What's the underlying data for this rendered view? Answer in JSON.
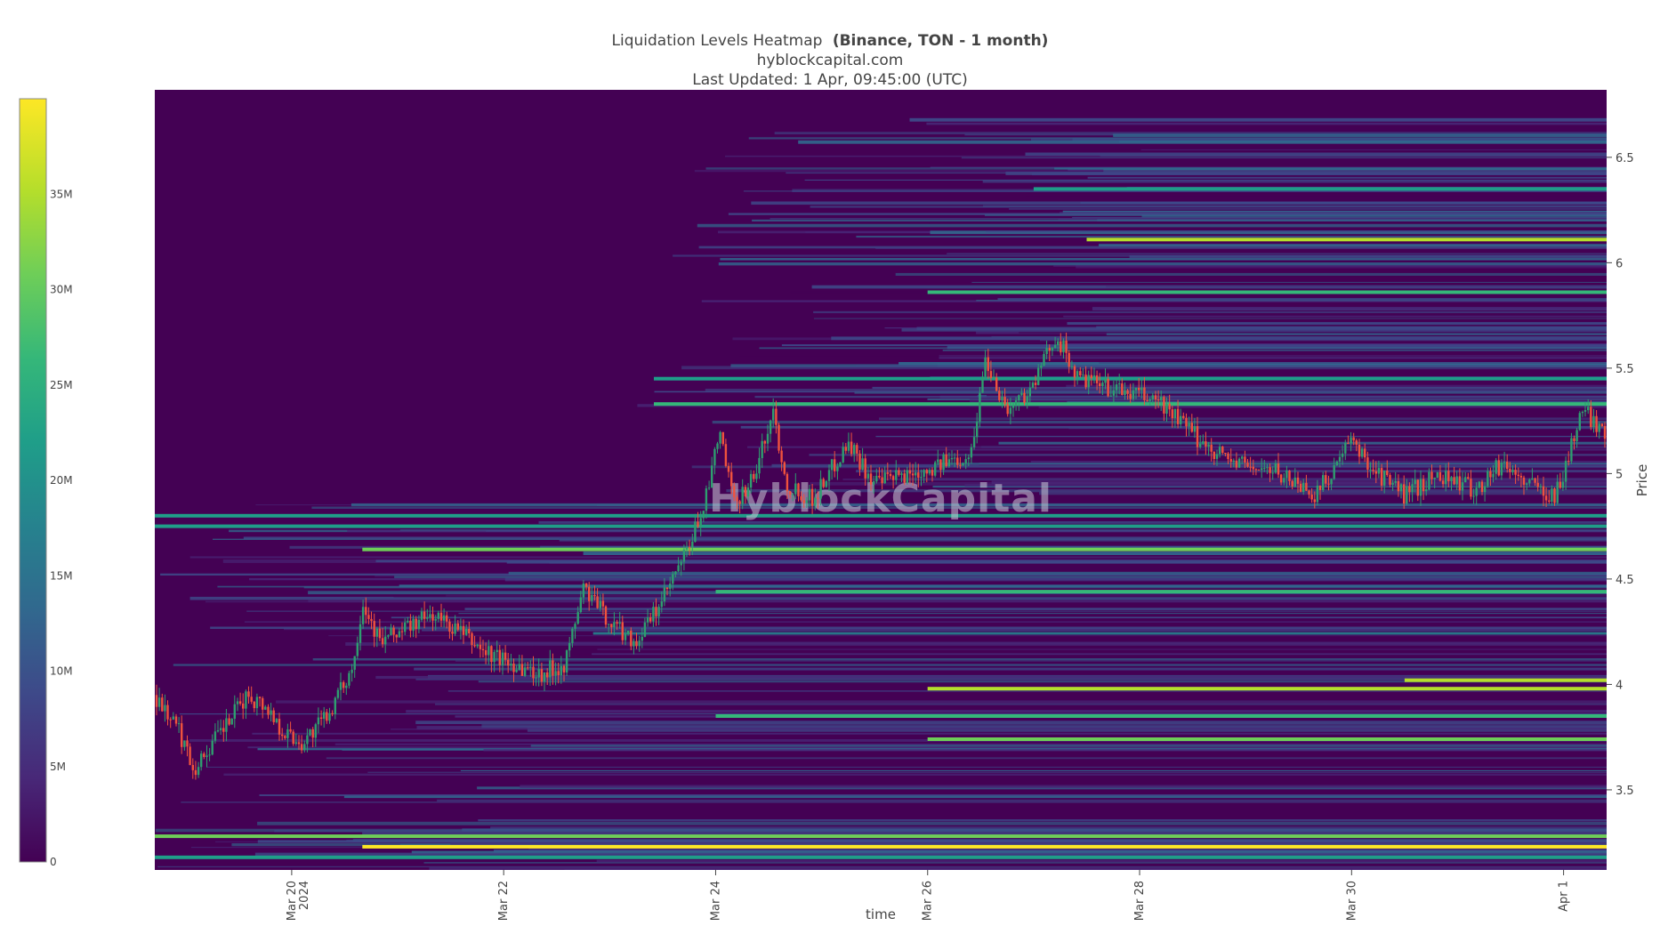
{
  "title": {
    "main": "Liquidation Levels Heatmap",
    "bold": "(Binance, TON - 1 month)",
    "source": "hyblockcapital.com",
    "updated": "Last Updated: 1 Apr, 09:45:00 (UTC)"
  },
  "watermark": "HyblockCapital",
  "colors": {
    "scale": [
      "#440154",
      "#482878",
      "#3e4989",
      "#31688e",
      "#26828e",
      "#1f9e89",
      "#35b779",
      "#6ece58",
      "#b5de2b",
      "#fde725"
    ],
    "up": "#2e9e6f",
    "down": "#f0523d"
  },
  "chart_data": {
    "type": "heatmap",
    "xlabel": "time",
    "ylabel": "Price",
    "x_range": [
      "2024-03-18 17:00",
      "2024-04-01 09:45"
    ],
    "ylim": [
      3.12,
      6.82
    ],
    "x_ticks": [
      {
        "value": "2024-03-20",
        "label": "Mar 20",
        "sub": "2024"
      },
      {
        "value": "2024-03-22",
        "label": "Mar 22"
      },
      {
        "value": "2024-03-24",
        "label": "Mar 24"
      },
      {
        "value": "2024-03-26",
        "label": "Mar 26"
      },
      {
        "value": "2024-03-28",
        "label": "Mar 28"
      },
      {
        "value": "2024-03-30",
        "label": "Mar 30"
      },
      {
        "value": "2024-04-01",
        "label": "Apr 1"
      }
    ],
    "y_ticks": [
      {
        "value": 3.5,
        "label": "3.5"
      },
      {
        "value": 4,
        "label": "4"
      },
      {
        "value": 4.5,
        "label": "4.5"
      },
      {
        "value": 5,
        "label": "5"
      },
      {
        "value": 5.5,
        "label": "5.5"
      },
      {
        "value": 6,
        "label": "6"
      },
      {
        "value": 6.5,
        "label": "6.5"
      }
    ],
    "colorbar": {
      "range": [
        0,
        40000000
      ],
      "ticks": [
        {
          "value": 0,
          "label": "0"
        },
        {
          "value": 5000000,
          "label": "5M"
        },
        {
          "value": 10000000,
          "label": "10M"
        },
        {
          "value": 15000000,
          "label": "15M"
        },
        {
          "value": 20000000,
          "label": "20M"
        },
        {
          "value": 25000000,
          "label": "25M"
        },
        {
          "value": 30000000,
          "label": "30M"
        },
        {
          "value": 35000000,
          "label": "35M"
        }
      ]
    },
    "liquidation_levels": [
      {
        "price": 3.23,
        "from": "2024-03-20 16:00",
        "value": 38000000
      },
      {
        "price": 3.28,
        "from": "2024-03-18 17:00",
        "value": 30000000
      },
      {
        "price": 3.18,
        "from": "2024-03-18 17:00",
        "value": 24000000
      },
      {
        "price": 3.74,
        "from": "2024-03-26 00:00",
        "value": 32000000
      },
      {
        "price": 3.85,
        "from": "2024-03-24 00:00",
        "value": 28000000
      },
      {
        "price": 3.98,
        "from": "2024-03-26 00:00",
        "value": 36000000
      },
      {
        "price": 4.02,
        "from": "2024-03-30 12:00",
        "value": 37000000
      },
      {
        "price": 4.44,
        "from": "2024-03-24 00:00",
        "value": 26000000
      },
      {
        "price": 4.64,
        "from": "2024-03-20 16:00",
        "value": 33000000
      },
      {
        "price": 4.75,
        "from": "2024-03-18 17:00",
        "value": 24000000
      },
      {
        "price": 4.8,
        "from": "2024-03-18 17:00",
        "value": 20000000
      },
      {
        "price": 5.33,
        "from": "2024-03-23 10:00",
        "value": 26000000
      },
      {
        "price": 5.45,
        "from": "2024-03-23 10:00",
        "value": 24000000
      },
      {
        "price": 5.86,
        "from": "2024-03-26 00:00",
        "value": 28000000
      },
      {
        "price": 6.11,
        "from": "2024-03-27 12:00",
        "value": 37000000
      },
      {
        "price": 6.35,
        "from": "2024-03-27 00:00",
        "value": 22000000
      }
    ],
    "price_series": {
      "name": "TON",
      "points": [
        [
          "2024-03-18 17:00",
          3.95
        ],
        [
          "2024-03-18 22:00",
          3.8
        ],
        [
          "2024-03-19 02:00",
          3.6
        ],
        [
          "2024-03-19 06:00",
          3.72
        ],
        [
          "2024-03-19 10:00",
          3.83
        ],
        [
          "2024-03-19 14:00",
          3.95
        ],
        [
          "2024-03-19 18:00",
          3.9
        ],
        [
          "2024-03-19 22:00",
          3.78
        ],
        [
          "2024-03-20 02:00",
          3.72
        ],
        [
          "2024-03-20 06:00",
          3.8
        ],
        [
          "2024-03-20 10:00",
          3.92
        ],
        [
          "2024-03-20 14:00",
          4.1
        ],
        [
          "2024-03-20 16:00",
          4.4
        ],
        [
          "2024-03-20 20:00",
          4.2
        ],
        [
          "2024-03-21 02:00",
          4.27
        ],
        [
          "2024-03-21 08:00",
          4.33
        ],
        [
          "2024-03-21 14:00",
          4.25
        ],
        [
          "2024-03-21 20:00",
          4.15
        ],
        [
          "2024-03-22 02:00",
          4.1
        ],
        [
          "2024-03-22 08:00",
          4.05
        ],
        [
          "2024-03-22 14:00",
          4.1
        ],
        [
          "2024-03-22 18:00",
          4.46
        ],
        [
          "2024-03-23 00:00",
          4.3
        ],
        [
          "2024-03-23 06:00",
          4.2
        ],
        [
          "2024-03-23 12:00",
          4.4
        ],
        [
          "2024-03-23 18:00",
          4.65
        ],
        [
          "2024-03-23 22:00",
          4.9
        ],
        [
          "2024-03-24 01:00",
          5.2
        ],
        [
          "2024-03-24 04:00",
          4.85
        ],
        [
          "2024-03-24 09:00",
          5.0
        ],
        [
          "2024-03-24 13:00",
          5.3
        ],
        [
          "2024-03-24 16:00",
          4.95
        ],
        [
          "2024-03-24 22:00",
          4.88
        ],
        [
          "2024-03-25 06:00",
          5.15
        ],
        [
          "2024-03-25 12:00",
          4.95
        ],
        [
          "2024-03-25 20:00",
          5.0
        ],
        [
          "2024-03-26 04:00",
          5.05
        ],
        [
          "2024-03-26 10:00",
          5.1
        ],
        [
          "2024-03-26 13:00",
          5.55
        ],
        [
          "2024-03-26 18:00",
          5.3
        ],
        [
          "2024-03-27 00:00",
          5.42
        ],
        [
          "2024-03-27 05:00",
          5.66
        ],
        [
          "2024-03-27 10:00",
          5.45
        ],
        [
          "2024-03-27 18:00",
          5.4
        ],
        [
          "2024-03-28 04:00",
          5.35
        ],
        [
          "2024-03-28 14:00",
          5.15
        ],
        [
          "2024-03-28 22:00",
          5.05
        ],
        [
          "2024-03-29 08:00",
          5.0
        ],
        [
          "2024-03-29 16:00",
          4.9
        ],
        [
          "2024-03-30 00:00",
          5.15
        ],
        [
          "2024-03-30 06:00",
          5.0
        ],
        [
          "2024-03-30 12:00",
          4.9
        ],
        [
          "2024-03-30 20:00",
          5.0
        ],
        [
          "2024-03-31 04:00",
          4.92
        ],
        [
          "2024-03-31 10:00",
          5.05
        ],
        [
          "2024-03-31 16:00",
          4.95
        ],
        [
          "2024-03-31 22:00",
          4.9
        ],
        [
          "2024-04-01 00:00",
          5.0
        ],
        [
          "2024-04-01 04:00",
          5.3
        ],
        [
          "2024-04-01 09:45",
          5.2
        ]
      ]
    }
  }
}
